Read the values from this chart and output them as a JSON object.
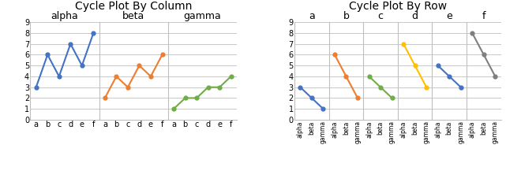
{
  "title_left": "Cycle Plot By Column",
  "title_right": "Cycle Plot By Row",
  "rows": [
    "a",
    "b",
    "c",
    "d",
    "e",
    "f"
  ],
  "cols": [
    "alpha",
    "beta",
    "gamma"
  ],
  "data": {
    "alpha": [
      3,
      6,
      4,
      7,
      5,
      8
    ],
    "beta": [
      2,
      4,
      3,
      5,
      4,
      6
    ],
    "gamma": [
      1,
      2,
      2,
      3,
      3,
      4
    ]
  },
  "col_colors": [
    "#4472C4",
    "#ED7D31",
    "#70AD47"
  ],
  "row_colors": [
    "#4472C4",
    "#ED7D31",
    "#70AD47",
    "#FFC000",
    "#4472C4",
    "#7F7F7F"
  ],
  "ylim": [
    0,
    9
  ],
  "yticks": [
    0,
    1,
    2,
    3,
    4,
    5,
    6,
    7,
    8,
    9
  ],
  "col_label_fontsize": 9,
  "title_fontsize": 10,
  "tick_fontsize": 7,
  "bg_color": "#FFFFFF",
  "grid_color": "#BFBFBF",
  "border_color": "#BFBFBF"
}
